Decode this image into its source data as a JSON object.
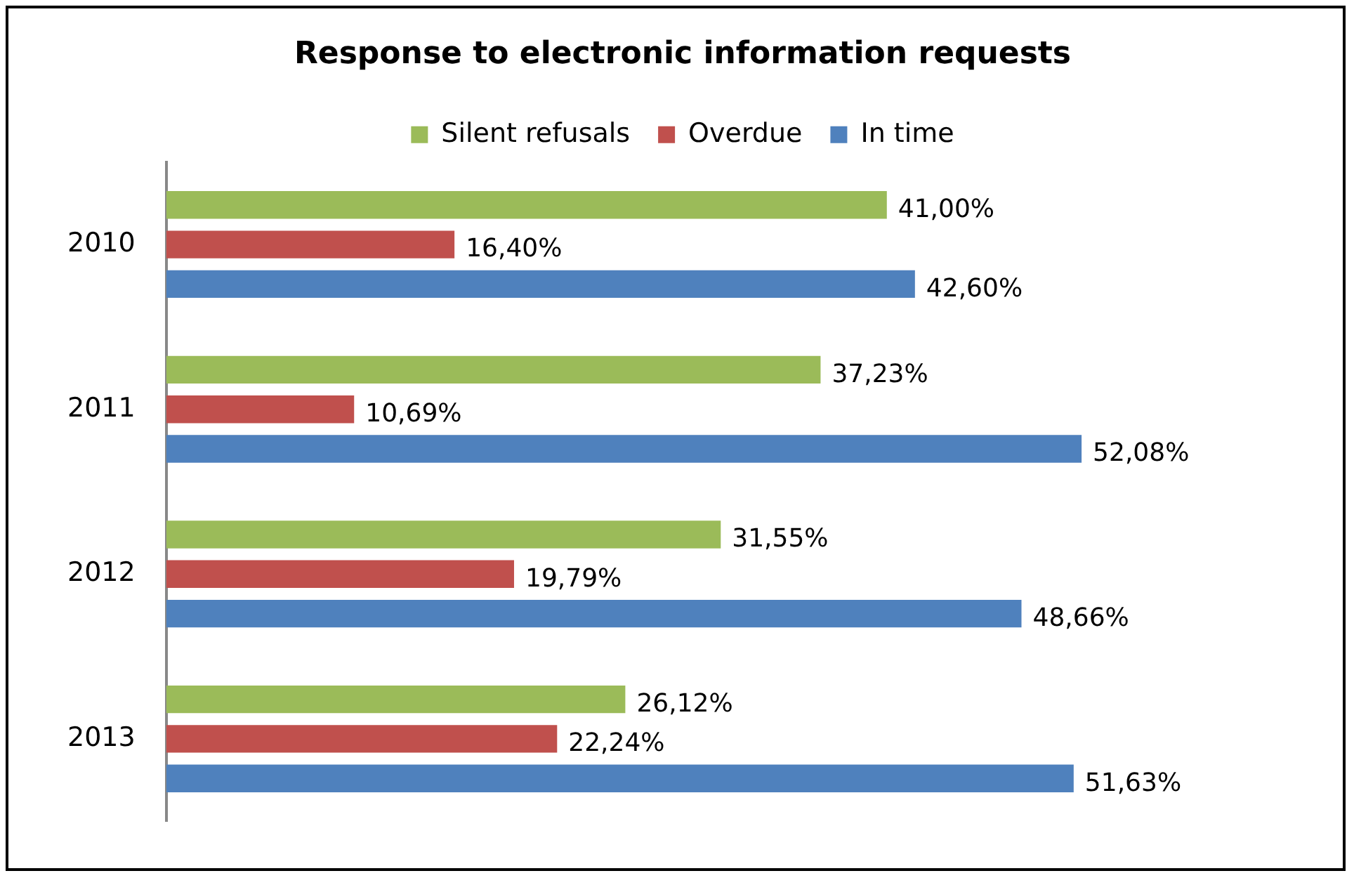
{
  "chart_data": {
    "type": "bar",
    "orientation": "horizontal",
    "title": "Response to electronic information requests",
    "categories": [
      "2010",
      "2011",
      "2012",
      "2013"
    ],
    "series": [
      {
        "name": "Silent refusals",
        "color": "#9bbb59",
        "values": [
          41.0,
          37.23,
          31.55,
          26.12
        ],
        "value_labels": [
          "41,00%",
          "37,23%",
          "31,55%",
          "26,12%"
        ]
      },
      {
        "name": "Overdue",
        "color": "#c0504d",
        "values": [
          16.4,
          10.69,
          19.79,
          22.24
        ],
        "value_labels": [
          "16,40%",
          "10,69%",
          "19,79%",
          "22,24%"
        ]
      },
      {
        "name": "In time",
        "color": "#4f81bd",
        "values": [
          42.6,
          52.08,
          48.66,
          51.63
        ],
        "value_labels": [
          "42,60%",
          "52,08%",
          "48,66%",
          "51,63%"
        ]
      }
    ],
    "legend": "top",
    "grid": false,
    "tick_labels": "y"
  }
}
